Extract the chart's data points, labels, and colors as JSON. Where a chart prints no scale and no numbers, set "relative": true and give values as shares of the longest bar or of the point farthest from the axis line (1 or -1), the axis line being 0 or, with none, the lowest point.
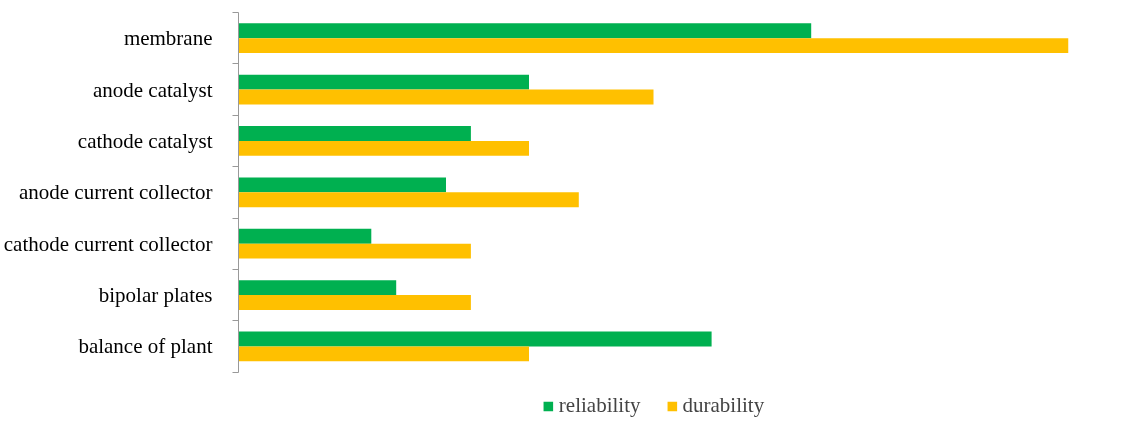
{
  "chart_data": {
    "type": "bar",
    "orientation": "horizontal",
    "relative": true,
    "legend": "bottom",
    "grid": false,
    "categories": [
      "membrane",
      "anode catalyst",
      "cathode catalyst",
      "anode current collector",
      "cathode current collector",
      "bipolar plates",
      "balance of plant"
    ],
    "series": [
      {
        "name": "reliability",
        "color": "#00b050",
        "values": [
          0.69,
          0.35,
          0.28,
          0.25,
          0.16,
          0.19,
          0.57
        ]
      },
      {
        "name": "durability",
        "color": "#ffc000",
        "values": [
          1.0,
          0.5,
          0.35,
          0.41,
          0.28,
          0.28,
          0.35
        ]
      }
    ]
  }
}
